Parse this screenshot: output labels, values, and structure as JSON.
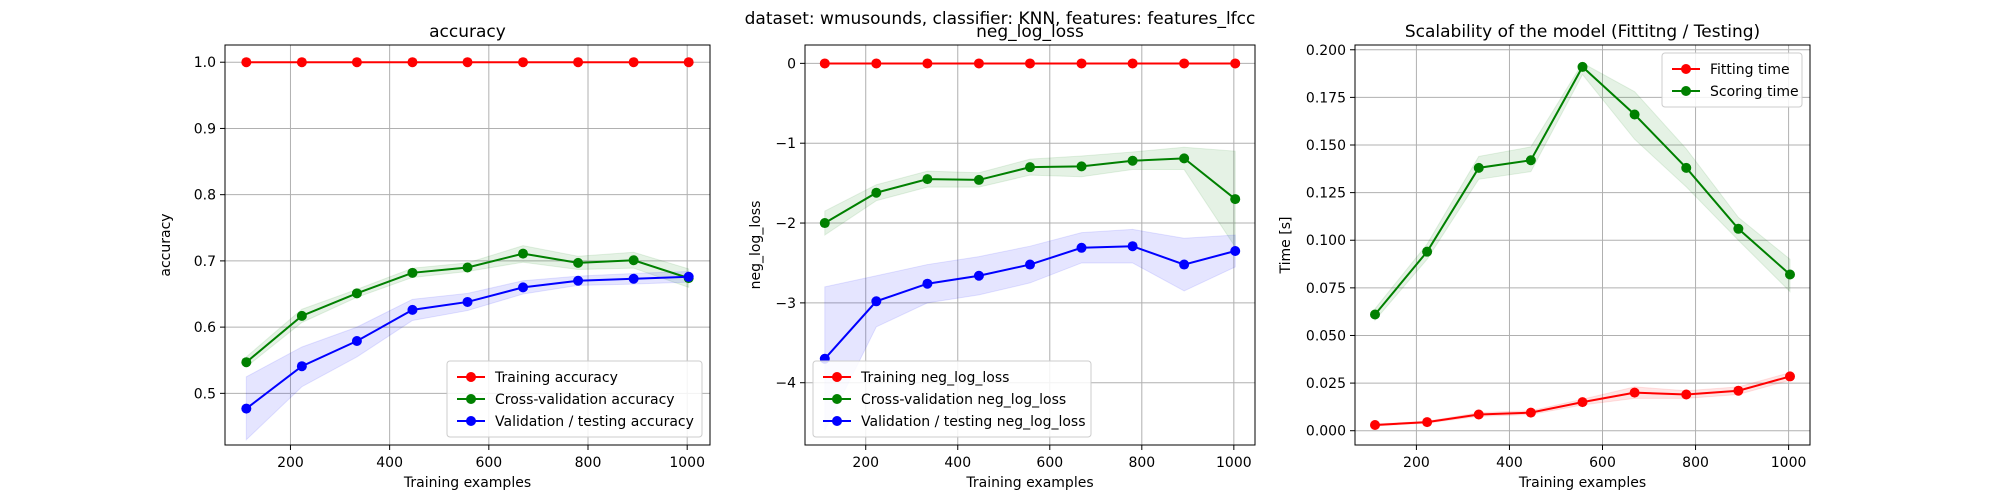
{
  "suptitle": "dataset: wmusounds, classifier: KNN, features: features_lfcc",
  "colors": {
    "train": "#ff0000",
    "cv": "#008000",
    "val": "#0000ff",
    "cv_band": "#008000",
    "val_band": "#0000ff",
    "grid": "#b0b0b0"
  },
  "chart_data": [
    {
      "type": "line",
      "title": "accuracy",
      "xlabel": "Training examples",
      "ylabel": "accuracy",
      "xlim": [
        68,
        1046
      ],
      "ylim": [
        0.422,
        1.026
      ],
      "xticks": [
        200,
        400,
        600,
        800,
        1000
      ],
      "xtick_labels": [
        "200",
        "400",
        "600",
        "800",
        "1000"
      ],
      "yticks": [
        0.5,
        0.6,
        0.7,
        0.8,
        0.9,
        1.0
      ],
      "ytick_labels": [
        "0.5",
        "0.6",
        "0.7",
        "0.8",
        "0.9",
        "1.0"
      ],
      "grid": true,
      "legend_position": "lower-right",
      "x": [
        111,
        223,
        334,
        446,
        557,
        669,
        780,
        892,
        1003
      ],
      "series": [
        {
          "name": "Training accuracy",
          "color_key": "train",
          "values": [
            1.0,
            1.0,
            1.0,
            1.0,
            1.0,
            1.0,
            1.0,
            1.0,
            1.0
          ]
        },
        {
          "name": "Cross-validation accuracy",
          "color_key": "cv",
          "values": [
            0.547,
            0.617,
            0.651,
            0.682,
            0.69,
            0.711,
            0.697,
            0.701,
            0.674
          ],
          "band_lower": [
            0.54,
            0.607,
            0.645,
            0.675,
            0.684,
            0.698,
            0.687,
            0.689,
            0.66
          ],
          "band_upper": [
            0.555,
            0.627,
            0.657,
            0.689,
            0.697,
            0.723,
            0.707,
            0.713,
            0.688
          ]
        },
        {
          "name": "Validation / testing accuracy",
          "color_key": "val",
          "values": [
            0.477,
            0.541,
            0.579,
            0.626,
            0.638,
            0.66,
            0.67,
            0.673,
            0.676
          ],
          "band_lower": [
            0.43,
            0.51,
            0.555,
            0.61,
            0.625,
            0.65,
            0.663,
            0.665,
            0.668
          ],
          "band_upper": [
            0.525,
            0.57,
            0.6,
            0.642,
            0.651,
            0.67,
            0.677,
            0.681,
            0.684
          ]
        }
      ]
    },
    {
      "type": "line",
      "title": "neg_log_loss",
      "xlabel": "Training examples",
      "ylabel": "neg_log_loss",
      "xlim": [
        68,
        1046
      ],
      "ylim": [
        -4.78,
        0.23
      ],
      "xticks": [
        200,
        400,
        600,
        800,
        1000
      ],
      "xtick_labels": [
        "200",
        "400",
        "600",
        "800",
        "1000"
      ],
      "yticks": [
        -4,
        -3,
        -2,
        -1,
        0
      ],
      "ytick_labels": [
        "−4",
        "−3",
        "−2",
        "−1",
        "0"
      ],
      "grid": true,
      "legend_position": "lower-left",
      "x": [
        111,
        223,
        334,
        446,
        557,
        669,
        780,
        892,
        1003
      ],
      "series": [
        {
          "name": "Training neg_log_loss",
          "color_key": "train",
          "values": [
            -0.001,
            -0.001,
            -0.001,
            -0.001,
            -0.001,
            -0.001,
            -0.001,
            -0.001,
            -0.001
          ]
        },
        {
          "name": "Cross-validation neg_log_loss",
          "color_key": "cv",
          "values": [
            -2.0,
            -1.62,
            -1.45,
            -1.46,
            -1.3,
            -1.29,
            -1.22,
            -1.19,
            -1.7
          ],
          "band_lower": [
            -2.15,
            -1.72,
            -1.55,
            -1.55,
            -1.4,
            -1.42,
            -1.33,
            -1.33,
            -2.3
          ],
          "band_upper": [
            -1.85,
            -1.52,
            -1.35,
            -1.37,
            -1.2,
            -1.16,
            -1.11,
            -1.05,
            -1.1
          ]
        },
        {
          "name": "Validation / testing neg_log_loss",
          "color_key": "val",
          "values": [
            -3.7,
            -2.98,
            -2.76,
            -2.66,
            -2.52,
            -2.31,
            -2.29,
            -2.52,
            -2.35
          ],
          "band_lower": [
            -4.6,
            -3.3,
            -3.0,
            -2.9,
            -2.75,
            -2.5,
            -2.5,
            -2.85,
            -2.55
          ],
          "band_upper": [
            -2.8,
            -2.66,
            -2.52,
            -2.42,
            -2.29,
            -2.12,
            -2.08,
            -2.19,
            -2.15
          ]
        }
      ]
    },
    {
      "type": "line",
      "title": "Scalability of the model (Fittitng / Testing)",
      "xlabel": "Training examples",
      "ylabel": "Time [s]",
      "xlim": [
        68,
        1046
      ],
      "ylim": [
        -0.0075,
        0.2025
      ],
      "xticks": [
        200,
        400,
        600,
        800,
        1000
      ],
      "xtick_labels": [
        "200",
        "400",
        "600",
        "800",
        "1000"
      ],
      "yticks": [
        0.0,
        0.025,
        0.05,
        0.075,
        0.1,
        0.125,
        0.15,
        0.175,
        0.2
      ],
      "ytick_labels": [
        "0.000",
        "0.025",
        "0.050",
        "0.075",
        "0.100",
        "0.125",
        "0.150",
        "0.175",
        "0.200"
      ],
      "grid": true,
      "legend_position": "top-right",
      "x": [
        111,
        223,
        334,
        446,
        557,
        669,
        780,
        892,
        1003
      ],
      "series": [
        {
          "name": "Fitting time",
          "color_key": "train",
          "values": [
            0.003,
            0.0045,
            0.0085,
            0.0095,
            0.015,
            0.02,
            0.019,
            0.021,
            0.0285
          ],
          "band_lower": [
            0.0025,
            0.004,
            0.0075,
            0.0085,
            0.0135,
            0.017,
            0.017,
            0.019,
            0.0265
          ],
          "band_upper": [
            0.0035,
            0.005,
            0.0095,
            0.0105,
            0.0165,
            0.023,
            0.021,
            0.023,
            0.0305
          ]
        },
        {
          "name": "Scoring time",
          "color_key": "cv",
          "values": [
            0.061,
            0.094,
            0.138,
            0.142,
            0.191,
            0.166,
            0.138,
            0.106,
            0.082
          ],
          "band_lower": [
            0.058,
            0.09,
            0.132,
            0.136,
            0.187,
            0.153,
            0.128,
            0.1,
            0.073
          ],
          "band_upper": [
            0.064,
            0.098,
            0.144,
            0.149,
            0.193,
            0.178,
            0.148,
            0.112,
            0.09
          ]
        }
      ]
    }
  ]
}
